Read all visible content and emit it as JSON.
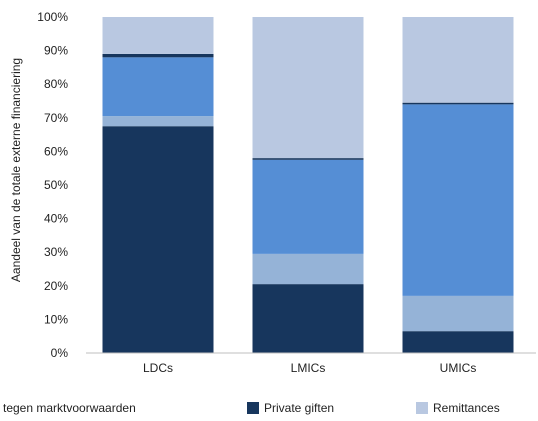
{
  "chart_data": {
    "type": "bar",
    "stacked": true,
    "title": "",
    "xlabel": "",
    "ylabel": "Aandeel van de totale externe financiering",
    "ylim": [
      0,
      100
    ],
    "yticks": [
      "0%",
      "10%",
      "20%",
      "30%",
      "40%",
      "50%",
      "60%",
      "70%",
      "80%",
      "90%",
      "100%"
    ],
    "categories": [
      "LDCs",
      "LMICs",
      "UMICs"
    ],
    "grid": false,
    "series": [
      {
        "values": [
          67.5,
          20.5,
          6.5
        ],
        "color": "#17365d"
      },
      {
        "values": [
          3.0,
          9.0,
          10.5
        ],
        "color": "#95b3d7"
      },
      {
        "values": [
          17.5,
          28.0,
          57.0
        ],
        "color": "#558ed5"
      },
      {
        "values": [
          1.0,
          0.5,
          0.5
        ],
        "color": "#17365d"
      },
      {
        "values": [
          11.0,
          42.0,
          25.5
        ],
        "color": "#b9c8e1"
      }
    ],
    "legend": {
      "placement": "bottom",
      "items": [
        {
          "label": "tegen marktvoorwaarden",
          "color": "#558ed5"
        },
        {
          "label": "Private giften",
          "color": "#17365d"
        },
        {
          "label": "Remittances",
          "color": "#b9c8e1"
        }
      ]
    }
  }
}
